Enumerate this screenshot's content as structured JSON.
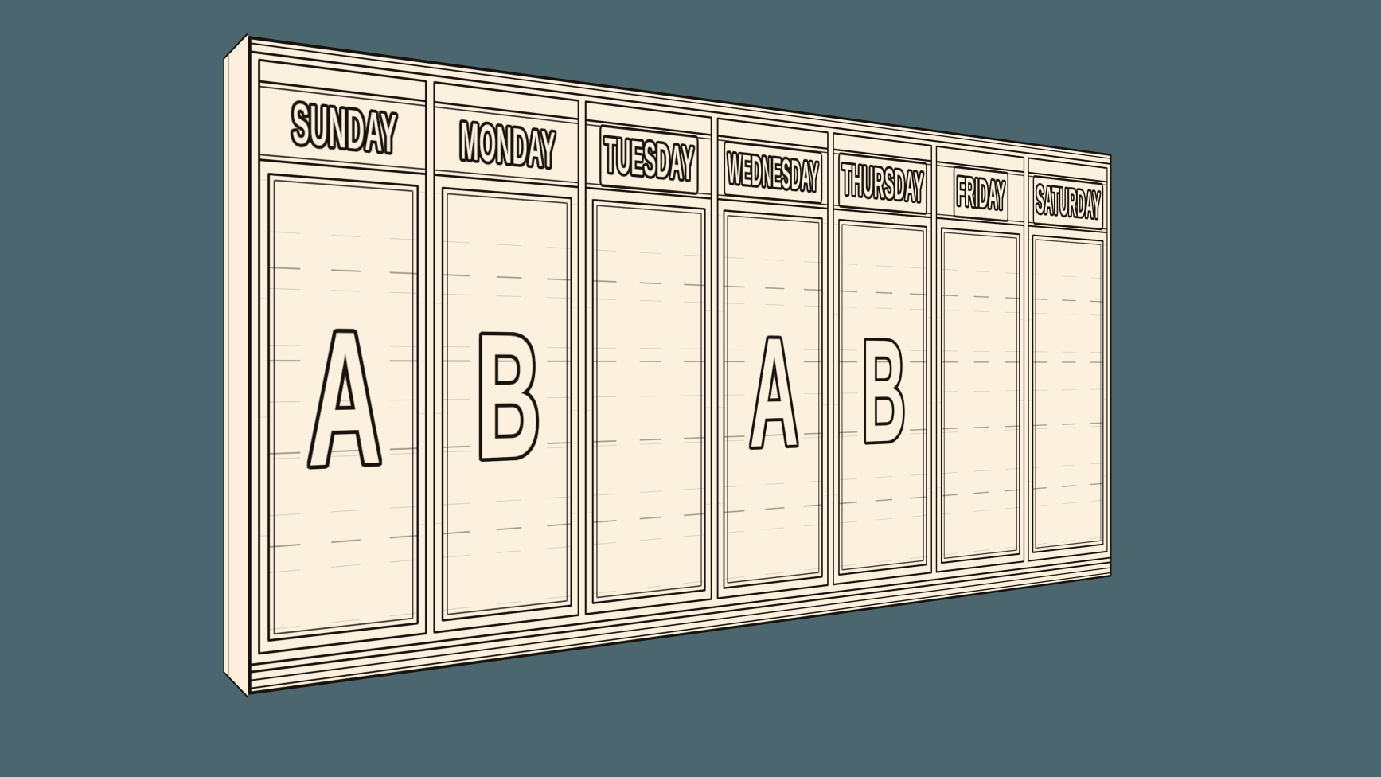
{
  "illustration": {
    "background_color": "#4b666e",
    "panel_color": "#fcf0de",
    "ink_color": "#17130c"
  },
  "days": [
    {
      "label": "SUNDAY",
      "letter": "A"
    },
    {
      "label": "MONDAY",
      "letter": "B"
    },
    {
      "label": "TUESDAY",
      "letter": ""
    },
    {
      "label": "WEDNESDAY",
      "letter": "A"
    },
    {
      "label": "THURSDAY",
      "letter": "B"
    },
    {
      "label": "FRIDAY",
      "letter": ""
    },
    {
      "label": "SATURDAY",
      "letter": ""
    }
  ]
}
